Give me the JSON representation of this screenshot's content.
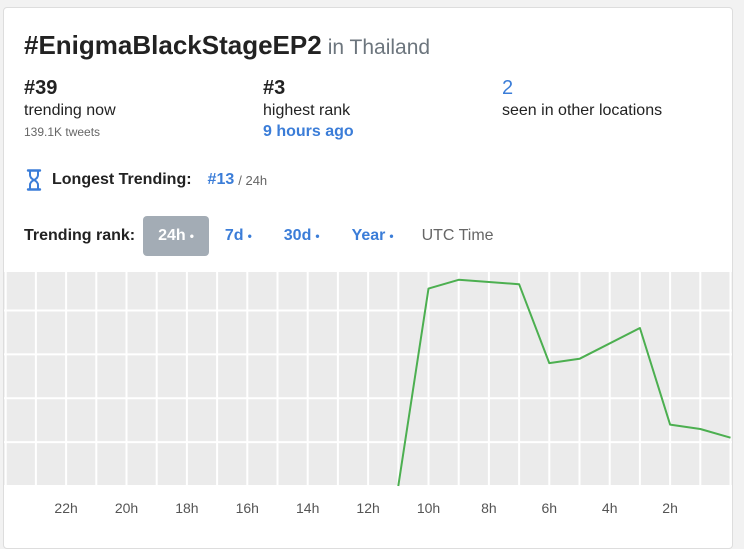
{
  "header": {
    "hashtag": "#EnigmaBlackStageEP2",
    "location": "in Thailand"
  },
  "stats": {
    "current": {
      "rank": "#39",
      "label": "trending now",
      "sub": "139.1K tweets"
    },
    "highest": {
      "rank": "#3",
      "label": "highest rank",
      "when": "9 hours ago"
    },
    "other": {
      "count": "2",
      "label": "seen in other locations"
    }
  },
  "longest": {
    "label": "Longest Trending:",
    "rank": "#13",
    "duration": "/ 24h",
    "icon": "hourglass-icon"
  },
  "range": {
    "label": "Trending rank:",
    "options": [
      {
        "label": "24h",
        "active": true
      },
      {
        "label": "7d",
        "active": false
      },
      {
        "label": "30d",
        "active": false
      },
      {
        "label": "Year",
        "active": false
      }
    ],
    "timezone": "UTC Time"
  },
  "colors": {
    "accent": "#3b7dd8",
    "line": "#4caf50",
    "active_pill": "#a3acb5"
  },
  "chart_data": {
    "type": "line",
    "x_tick_labels": [
      "22h",
      "20h",
      "18h",
      "16h",
      "14h",
      "12h",
      "10h",
      "8h",
      "6h",
      "4h",
      "2h"
    ],
    "series": [
      {
        "values": [
          {
            "x": 11,
            "y": 50
          },
          {
            "x": 10,
            "y": 5
          },
          {
            "x": 9,
            "y": 3
          },
          {
            "x": 7,
            "y": 4
          },
          {
            "x": 6,
            "y": 22
          },
          {
            "x": 5,
            "y": 21
          },
          {
            "x": 3,
            "y": 14
          },
          {
            "x": 2,
            "y": 36
          },
          {
            "x": 1,
            "y": 37
          },
          {
            "x": 0,
            "y": 39
          }
        ]
      }
    ],
    "x_range_hours_ago": [
      24,
      0
    ],
    "y_range_rank": [
      1,
      50
    ],
    "y_inverted": true,
    "grid": true
  }
}
